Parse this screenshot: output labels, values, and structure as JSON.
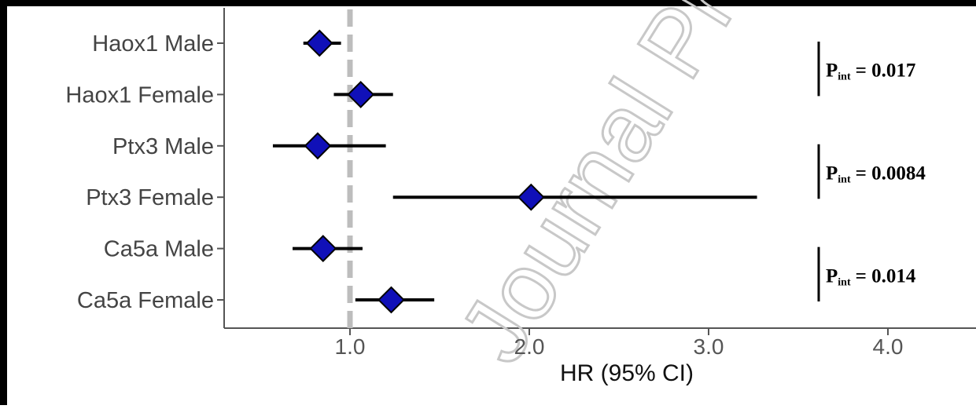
{
  "chart_data": {
    "type": "forest",
    "xlabel": "HR (95% CI)",
    "xlim": [
      0.3,
      4.5
    ],
    "xticks": [
      "1.0",
      "2.0",
      "3.0",
      "4.0"
    ],
    "reference_line": 1.0,
    "rows": [
      {
        "label": "Haox1 Male",
        "hr": 0.83,
        "lo": 0.74,
        "hi": 0.95
      },
      {
        "label": "Haox1 Female",
        "hr": 1.06,
        "lo": 0.91,
        "hi": 1.24
      },
      {
        "label": "Ptx3 Male",
        "hr": 0.82,
        "lo": 0.57,
        "hi": 1.2
      },
      {
        "label": "Ptx3 Female",
        "hr": 2.01,
        "lo": 1.24,
        "hi": 3.27
      },
      {
        "label": "Ca5a Male",
        "hr": 0.85,
        "lo": 0.68,
        "hi": 1.07
      },
      {
        "label": "Ca5a Female",
        "hr": 1.23,
        "lo": 1.03,
        "hi": 1.47
      }
    ],
    "interactions": [
      {
        "label": "P",
        "sub": "int",
        "value": "= 0.017",
        "rows": [
          0,
          1
        ]
      },
      {
        "label": "P",
        "sub": "int",
        "value": "= 0.0084",
        "rows": [
          2,
          3
        ]
      },
      {
        "label": "P",
        "sub": "int",
        "value": "= 0.014",
        "rows": [
          4,
          5
        ]
      }
    ],
    "marker_color": "#1010b8",
    "reference_line_color": "#bdbdbd"
  },
  "watermark": "Journal Pre-proof"
}
